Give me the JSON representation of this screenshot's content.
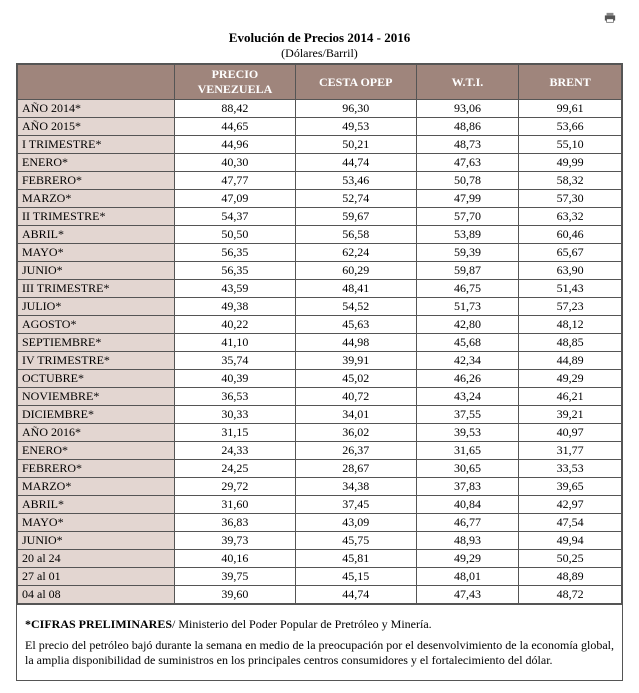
{
  "title": "Evolución de Precios 2014 - 2016",
  "subtitle": "(Dólares/Barril)",
  "columns": [
    "",
    "PRECIO VENEZUELA",
    "CESTA OPEP",
    "W.T.I.",
    "BRENT"
  ],
  "rows": [
    [
      "AÑO 2014*",
      "88,42",
      "96,30",
      "93,06",
      "99,61"
    ],
    [
      "AÑO 2015*",
      "44,65",
      "49,53",
      "48,86",
      "53,66"
    ],
    [
      "I TRIMESTRE*",
      "44,96",
      "50,21",
      "48,73",
      "55,10"
    ],
    [
      "ENERO*",
      "40,30",
      "44,74",
      "47,63",
      "49,99"
    ],
    [
      "FEBRERO*",
      "47,77",
      "53,46",
      "50,78",
      "58,32"
    ],
    [
      "MARZO*",
      "47,09",
      "52,74",
      "47,99",
      "57,30"
    ],
    [
      "II TRIMESTRE*",
      "54,37",
      "59,67",
      "57,70",
      "63,32"
    ],
    [
      "ABRIL*",
      "50,50",
      "56,58",
      "53,89",
      "60,46"
    ],
    [
      "MAYO*",
      "56,35",
      "62,24",
      "59,39",
      "65,67"
    ],
    [
      "JUNIO*",
      "56,35",
      "60,29",
      "59,87",
      "63,90"
    ],
    [
      "III TRIMESTRE*",
      "43,59",
      "48,41",
      "46,75",
      "51,43"
    ],
    [
      "JULIO*",
      "49,38",
      "54,52",
      "51,73",
      "57,23"
    ],
    [
      "AGOSTO*",
      "40,22",
      "45,63",
      "42,80",
      "48,12"
    ],
    [
      "SEPTIEMBRE*",
      "41,10",
      "44,98",
      "45,68",
      "48,85"
    ],
    [
      "IV TRIMESTRE*",
      "35,74",
      "39,91",
      "42,34",
      "44,89"
    ],
    [
      "OCTUBRE*",
      "40,39",
      "45,02",
      "46,26",
      "49,29"
    ],
    [
      "NOVIEMBRE*",
      "36,53",
      "40,72",
      "43,24",
      "46,21"
    ],
    [
      "DICIEMBRE*",
      "30,33",
      "34,01",
      "37,55",
      "39,21"
    ],
    [
      "AÑO 2016*",
      "31,15",
      "36,02",
      "39,53",
      "40,97"
    ],
    [
      "ENERO*",
      "24,33",
      "26,37",
      "31,65",
      "31,77"
    ],
    [
      "FEBRERO*",
      "24,25",
      "28,67",
      "30,65",
      "33,53"
    ],
    [
      "MARZO*",
      "29,72",
      "34,38",
      "37,83",
      "39,65"
    ],
    [
      "ABRIL*",
      "31,60",
      "37,45",
      "40,84",
      "42,97"
    ],
    [
      "MAYO*",
      "36,83",
      "43,09",
      "46,77",
      "47,54"
    ],
    [
      "JUNIO*",
      "39,73",
      "45,75",
      "48,93",
      "49,94"
    ],
    [
      "20 al 24",
      "40,16",
      "45,81",
      "49,29",
      "50,25"
    ],
    [
      "27 al 01",
      "39,75",
      "45,15",
      "48,01",
      "48,89"
    ],
    [
      "04 al 08",
      "39,60",
      "44,74",
      "47,43",
      "48,72"
    ]
  ],
  "footnote_bold": "*CIFRAS PRELIMINARES",
  "footnote_rest": "/ Ministerio del Poder Popular de Pretróleo y Minería.",
  "footnote_para": "El precio del petróleo bajó durante la semana en medio de la preocupación por el desenvolvimiento de la economía global, la amplia disponibilidad de suministros en los principales centros consumidores y el fortalecimiento del dólar.",
  "colors": {
    "header_bg": "#9f857c",
    "header_fg": "#ffffff",
    "rowlabel_bg": "#e3d6d1",
    "border": "#555555"
  }
}
